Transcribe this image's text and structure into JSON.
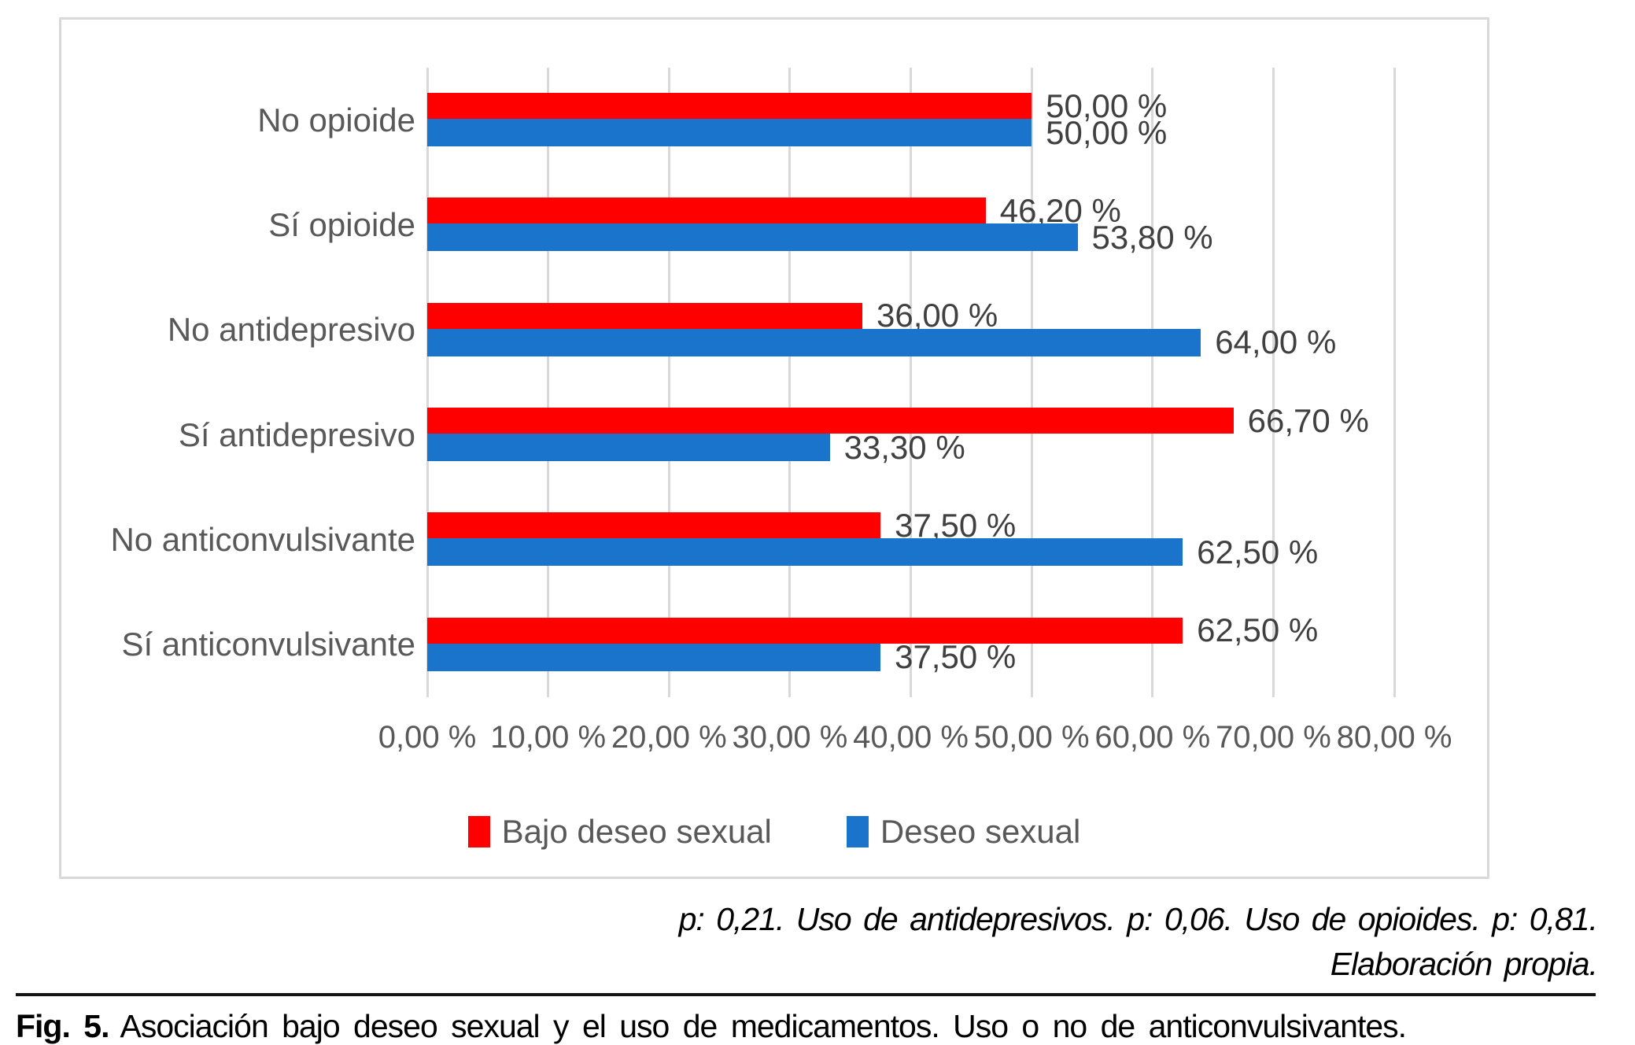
{
  "chart_data": {
    "type": "bar",
    "orientation": "horizontal",
    "title": "",
    "categories": [
      "No opioide",
      "Sí opioide",
      "No antidepresivo",
      "Sí antidepresivo",
      "No anticonvulsivante",
      "Sí anticonvulsivante"
    ],
    "series": [
      {
        "name": "Bajo deseo sexual",
        "color": "#FF0000",
        "values": [
          50.0,
          46.2,
          36.0,
          66.7,
          37.5,
          62.5
        ],
        "value_labels": [
          "50,00 %",
          "46,20 %",
          "36,00 %",
          "66,70 %",
          "37,50 %",
          "62,50 %"
        ]
      },
      {
        "name": "Deseo sexual",
        "color": "#1B74CC",
        "values": [
          50.0,
          53.8,
          64.0,
          33.3,
          62.5,
          37.5
        ],
        "value_labels": [
          "50,00 %",
          "53,80 %",
          "64,00 %",
          "33,30 %",
          "62,50 %",
          "37,50 %"
        ]
      }
    ],
    "x_axis": {
      "min": 0,
      "max": 80,
      "tick_step": 10,
      "tick_labels": [
        "0,00 %",
        "10,00 %",
        "20,00 %",
        "30,00 %",
        "40,00 %",
        "50,00 %",
        "60,00 %",
        "70,00 %",
        "80,00 %"
      ]
    },
    "grid": true,
    "legend_position": "bottom",
    "legend": [
      {
        "label": "Bajo deseo sexual",
        "color": "#FF0000"
      },
      {
        "label": "Deseo sexual",
        "color": "#1B74CC"
      }
    ]
  },
  "colors": {
    "bar_red": "#FF0000",
    "bar_blue": "#1B74CC",
    "gridline": "#D9D9D9",
    "chart_border": "#D9D9D9",
    "axis_text": "#595959",
    "data_label_text": "#404040",
    "body_text": "#000000"
  },
  "footnote": {
    "line1": "p: 0,21. Uso de antidepresivos. p: 0,06. Uso de opioides. p: 0,81.",
    "line2": "Elaboración propia."
  },
  "caption": {
    "prefix": "Fig. 5.",
    "text": "Asociación bajo deseo sexual y el uso de medicamentos. Uso o no de anticonvulsivantes."
  }
}
